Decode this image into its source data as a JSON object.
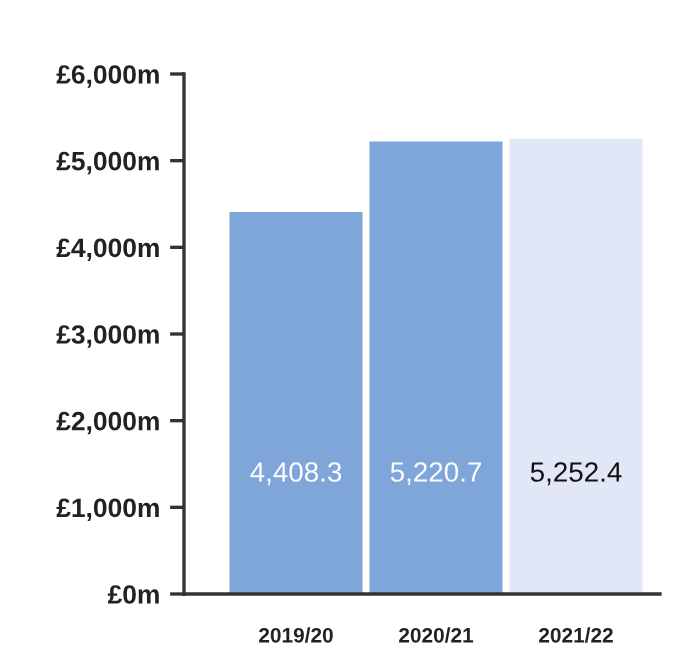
{
  "chart_data": {
    "type": "bar",
    "categories": [
      "2019/20",
      "2020/21",
      "2021/22"
    ],
    "values": [
      4408.3,
      5220.7,
      5252.4
    ],
    "colors": [
      "#7ea6d9",
      "#7ea6d9",
      "#e1e7f6"
    ],
    "value_labels": [
      "4,408.3",
      "5,220.7",
      "5,252.4"
    ],
    "ylim": [
      0,
      6000
    ],
    "yticks": [
      {
        "value": 0,
        "label": "£0m"
      },
      {
        "value": 1000,
        "label": "£1,000m"
      },
      {
        "value": 2000,
        "label": "£2,000m"
      },
      {
        "value": 3000,
        "label": "£3,000m"
      },
      {
        "value": 4000,
        "label": "£4,000m"
      },
      {
        "value": 5000,
        "label": "£5,000m"
      },
      {
        "value": 6000,
        "label": "£6,000m"
      }
    ],
    "grid": false,
    "legend": false
  }
}
